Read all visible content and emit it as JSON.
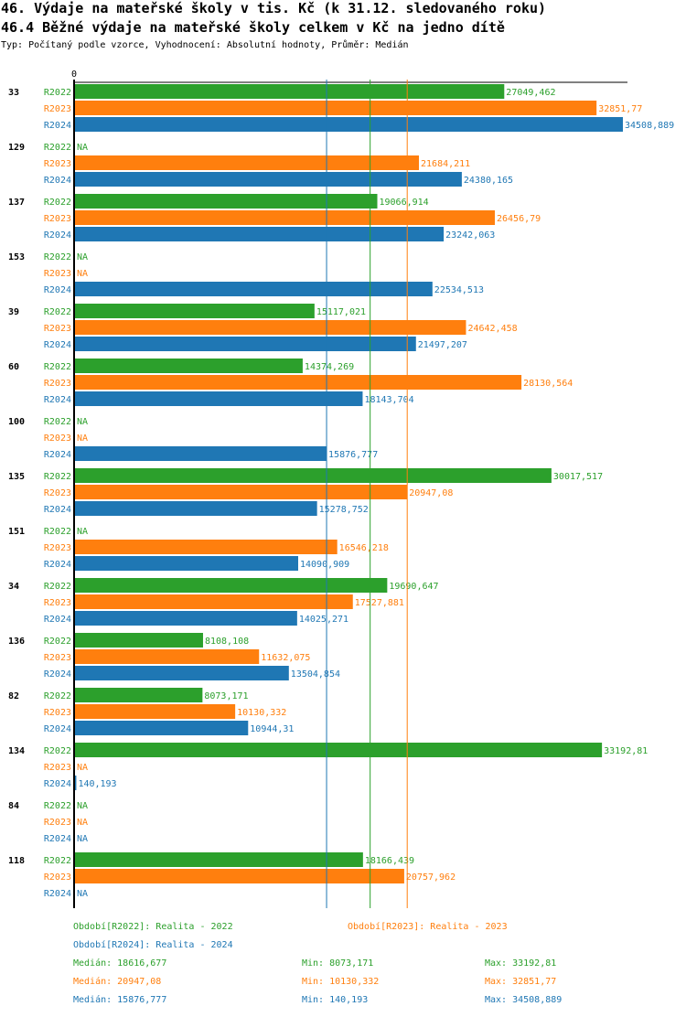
{
  "title": "46. Výdaje na mateřské školy v tis. Kč (k 31.12. sledovaného roku)",
  "subtitle": "46.4 Běžné výdaje na mateřské školy celkem v Kč na jedno dítě",
  "info": "Typ: Počítaný podle vzorce, Vyhodnocení: Absolutní hodnoty, Průměr: Medián",
  "chart_data": {
    "type": "bar",
    "orientation": "horizontal",
    "x_tick_label": "0",
    "xlim": [
      0,
      34508.889
    ],
    "na_label": "NA",
    "categories": [
      "33",
      "129",
      "137",
      "153",
      "39",
      "60",
      "100",
      "135",
      "151",
      "34",
      "136",
      "82",
      "134",
      "84",
      "118"
    ],
    "series": [
      {
        "name": "R2022",
        "color": "#2ca02c",
        "values": [
          27049.462,
          null,
          19066.914,
          null,
          15117.021,
          14374.269,
          null,
          30017.517,
          null,
          19690.647,
          8108.108,
          8073.171,
          33192.81,
          null,
          18166.439
        ]
      },
      {
        "name": "R2023",
        "color": "#ff7f0e",
        "values": [
          32851.77,
          21684.211,
          26456.79,
          null,
          24642.458,
          28130.564,
          null,
          20947.08,
          16546.218,
          17527.881,
          11632.075,
          10130.332,
          null,
          null,
          20757.962
        ]
      },
      {
        "name": "R2024",
        "color": "#1f77b4",
        "values": [
          34508.889,
          24380.165,
          23242.063,
          22534.513,
          21497.207,
          18143.704,
          15876.777,
          15278.752,
          14090.909,
          14025.271,
          13504.854,
          10944.31,
          140.193,
          null,
          null
        ]
      }
    ],
    "median_lines": [
      {
        "series": "R2022",
        "value": 18616.677
      },
      {
        "series": "R2023",
        "value": 20947.08
      },
      {
        "series": "R2024",
        "value": 15876.777
      }
    ]
  },
  "legend": {
    "r2022": "Období[R2022]: Realita - 2022",
    "r2023": "Období[R2023]: Realita - 2023",
    "r2024": "Období[R2024]: Realita - 2024"
  },
  "stats": [
    {
      "median": "Medián: 18616,677",
      "min": "Min: 8073,171",
      "max": "Max: 33192,81",
      "color": "#2ca02c"
    },
    {
      "median": "Medián: 20947,08",
      "min": "Min: 10130,332",
      "max": "Max: 32851,77",
      "color": "#ff7f0e"
    },
    {
      "median": "Medián: 15876,777",
      "min": "Min: 140,193",
      "max": "Max: 34508,889",
      "color": "#1f77b4"
    }
  ]
}
